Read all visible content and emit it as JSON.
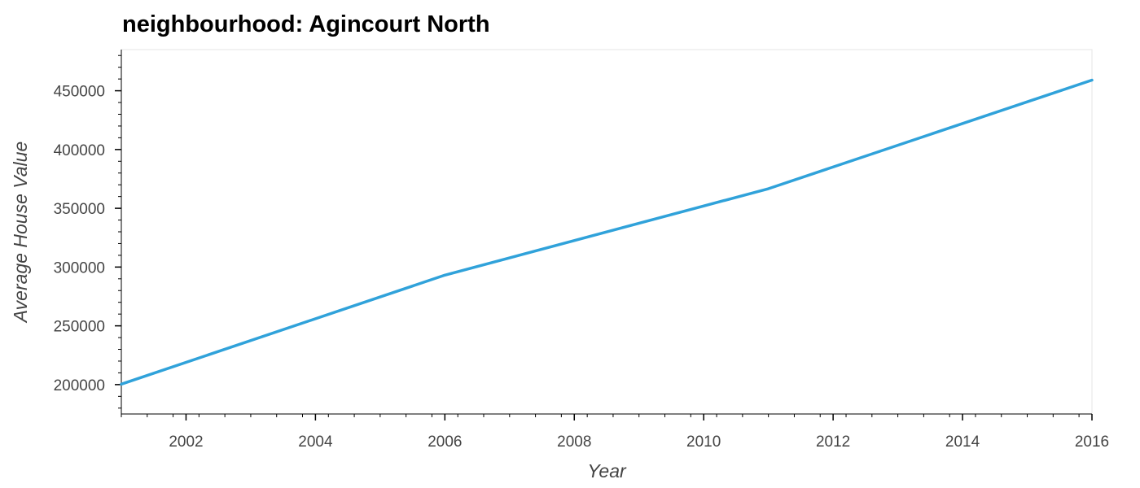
{
  "chart_data": {
    "type": "line",
    "title": "neighbourhood: Agincourt North",
    "xlabel": "Year",
    "ylabel": "Average House Value",
    "x": [
      2001,
      2006,
      2011,
      2016
    ],
    "series": [
      {
        "values": [
          200388,
          293141,
          366667,
          459051
        ]
      }
    ],
    "xlim": [
      2001,
      2016
    ],
    "ylim": [
      175000,
      485000
    ],
    "xticks": [
      2002,
      2004,
      2006,
      2008,
      2010,
      2012,
      2014,
      2016
    ],
    "yticks": [
      200000,
      250000,
      300000,
      350000,
      400000,
      450000
    ],
    "grid": false,
    "colors": {
      "line": "#30a2da",
      "axis": "#000000",
      "frame": "#e5e5e5"
    }
  }
}
